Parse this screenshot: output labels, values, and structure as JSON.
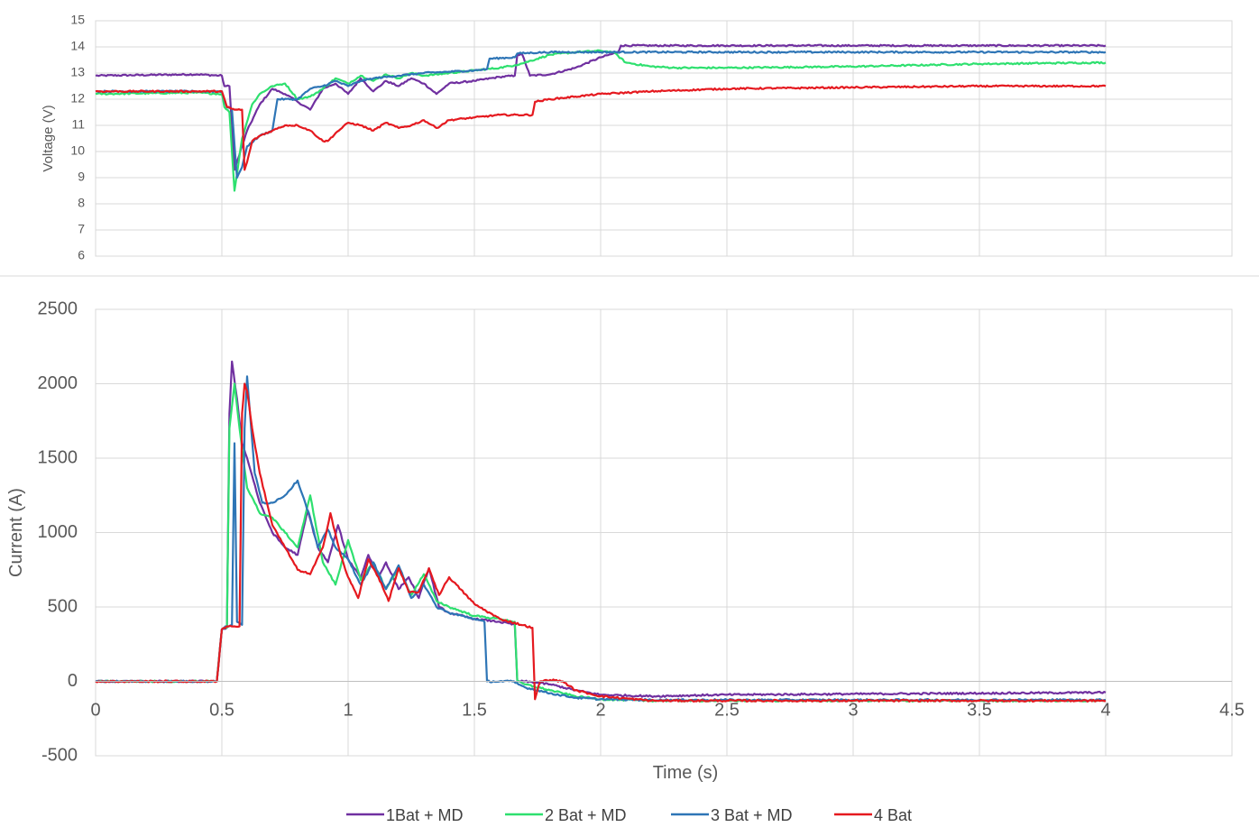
{
  "chart_data": [
    {
      "type": "line",
      "title": "",
      "xlabel": "",
      "ylabel": "Voltage (V)",
      "xlim": [
        0,
        4.5
      ],
      "ylim": [
        6,
        15
      ],
      "y_ticks": [
        "6",
        "7",
        "8",
        "9",
        "10",
        "11",
        "12",
        "13",
        "14",
        "15"
      ],
      "grid": true,
      "series": [
        {
          "name": "1Bat + MD",
          "color": "#7030a0",
          "x": [
            0,
            0.4,
            0.5,
            0.51,
            0.53,
            0.55,
            0.6,
            0.65,
            0.7,
            0.75,
            0.8,
            0.85,
            0.9,
            0.95,
            1.0,
            1.05,
            1.1,
            1.15,
            1.2,
            1.25,
            1.3,
            1.35,
            1.4,
            1.5,
            1.6,
            1.66,
            1.67,
            1.69,
            1.72,
            1.8,
            1.9,
            2.0,
            2.07,
            2.08,
            2.5,
            3.0,
            3.5,
            4.0
          ],
          "y": [
            12.9,
            12.95,
            12.9,
            12.5,
            12.5,
            9.3,
            10.8,
            11.8,
            12.4,
            12.2,
            11.9,
            11.6,
            12.4,
            12.6,
            12.2,
            12.8,
            12.3,
            12.7,
            12.5,
            12.8,
            12.6,
            12.2,
            12.6,
            12.7,
            12.85,
            12.9,
            13.7,
            13.7,
            12.9,
            12.95,
            13.2,
            13.6,
            13.8,
            14.05,
            14.05,
            14.05,
            14.05,
            14.05
          ]
        },
        {
          "name": "2 Bat + MD",
          "color": "#2ee06f",
          "x": [
            0,
            0.4,
            0.5,
            0.51,
            0.53,
            0.55,
            0.58,
            0.62,
            0.65,
            0.7,
            0.75,
            0.8,
            0.85,
            0.9,
            0.95,
            1.0,
            1.05,
            1.1,
            1.15,
            1.2,
            1.25,
            1.3,
            1.4,
            1.5,
            1.6,
            1.66,
            1.7,
            1.8,
            1.9,
            2.0,
            2.05,
            2.1,
            2.2,
            2.3,
            2.5,
            3.0,
            3.5,
            4.0
          ],
          "y": [
            12.2,
            12.25,
            12.2,
            11.7,
            11.5,
            8.5,
            10.5,
            11.8,
            12.2,
            12.5,
            12.6,
            12.0,
            12.1,
            12.4,
            12.8,
            12.6,
            12.9,
            12.7,
            12.95,
            12.8,
            13.0,
            12.9,
            13.0,
            13.1,
            13.2,
            13.3,
            13.4,
            13.7,
            13.8,
            13.85,
            13.8,
            13.4,
            13.25,
            13.2,
            13.2,
            13.25,
            13.35,
            13.4
          ]
        },
        {
          "name": "3 Bat + MD",
          "color": "#2e75b6",
          "x": [
            0,
            0.4,
            0.5,
            0.52,
            0.54,
            0.56,
            0.58,
            0.6,
            0.65,
            0.7,
            0.72,
            0.8,
            0.85,
            0.9,
            0.95,
            1.0,
            1.05,
            1.1,
            1.2,
            1.3,
            1.4,
            1.5,
            1.55,
            1.56,
            1.66,
            1.67,
            1.8,
            2.0,
            2.5,
            3.0,
            3.5,
            4.0
          ],
          "y": [
            12.3,
            12.3,
            12.3,
            11.7,
            11.6,
            9.0,
            9.4,
            10.2,
            10.6,
            10.8,
            12.0,
            12.0,
            12.4,
            12.5,
            12.7,
            12.5,
            12.7,
            12.8,
            12.9,
            13.0,
            13.05,
            13.1,
            13.15,
            13.55,
            13.6,
            13.75,
            13.8,
            13.8,
            13.8,
            13.8,
            13.8,
            13.8
          ]
        },
        {
          "name": "4 Bat",
          "color": "#e5191f",
          "x": [
            0,
            0.4,
            0.5,
            0.52,
            0.55,
            0.58,
            0.59,
            0.6,
            0.62,
            0.65,
            0.7,
            0.75,
            0.8,
            0.85,
            0.9,
            0.92,
            0.95,
            1.0,
            1.05,
            1.1,
            1.15,
            1.2,
            1.25,
            1.3,
            1.35,
            1.4,
            1.5,
            1.6,
            1.73,
            1.74,
            1.8,
            1.9,
            2.0,
            2.2,
            2.5,
            3.0,
            3.5,
            4.0
          ],
          "y": [
            12.3,
            12.3,
            12.3,
            11.7,
            11.6,
            11.6,
            9.3,
            9.6,
            10.4,
            10.6,
            10.8,
            11.0,
            11.0,
            10.8,
            10.4,
            10.4,
            10.7,
            11.1,
            11.0,
            10.8,
            11.1,
            10.9,
            11.0,
            11.2,
            10.9,
            11.2,
            11.3,
            11.4,
            11.4,
            11.9,
            12.0,
            12.1,
            12.2,
            12.3,
            12.4,
            12.45,
            12.5,
            12.5
          ]
        }
      ]
    },
    {
      "type": "line",
      "title": "",
      "xlabel": "Time (s)",
      "ylabel": "Current (A)",
      "xlim": [
        0,
        4.5
      ],
      "ylim": [
        -500,
        2500
      ],
      "x_ticks": [
        "0",
        "0.5",
        "1",
        "1.5",
        "2",
        "2.5",
        "3",
        "3.5",
        "4",
        "4.5"
      ],
      "y_ticks": [
        "-500",
        "0",
        "500",
        "1000",
        "1500",
        "2000",
        "2500"
      ],
      "grid": true,
      "legend": "bottom",
      "series": [
        {
          "name": "1Bat + MD",
          "color": "#7030a0",
          "x": [
            0,
            0.48,
            0.5,
            0.52,
            0.53,
            0.54,
            0.56,
            0.58,
            0.6,
            0.65,
            0.7,
            0.75,
            0.8,
            0.84,
            0.88,
            0.92,
            0.96,
            1.0,
            1.05,
            1.08,
            1.12,
            1.15,
            1.2,
            1.24,
            1.28,
            1.32,
            1.36,
            1.4,
            1.5,
            1.6,
            1.66,
            1.67,
            1.7,
            1.8,
            1.9,
            2.0,
            2.2,
            2.5,
            3.0,
            3.5,
            4.0
          ],
          "y": [
            0,
            0,
            350,
            360,
            1800,
            2150,
            1900,
            1600,
            1500,
            1200,
            1000,
            900,
            850,
            1150,
            900,
            800,
            1050,
            820,
            700,
            850,
            700,
            800,
            620,
            700,
            560,
            760,
            500,
            460,
            420,
            400,
            380,
            0,
            0,
            -20,
            -60,
            -90,
            -100,
            -90,
            -85,
            -80,
            -75
          ]
        },
        {
          "name": "2 Bat + MD",
          "color": "#2ee06f",
          "x": [
            0,
            0.48,
            0.5,
            0.52,
            0.53,
            0.55,
            0.57,
            0.6,
            0.63,
            0.65,
            0.7,
            0.75,
            0.8,
            0.85,
            0.9,
            0.95,
            1.0,
            1.05,
            1.1,
            1.15,
            1.2,
            1.25,
            1.3,
            1.35,
            1.4,
            1.5,
            1.6,
            1.66,
            1.67,
            1.7,
            1.8,
            1.9,
            2.0,
            2.2,
            2.5,
            3.0,
            3.5,
            4.0
          ],
          "y": [
            0,
            0,
            350,
            360,
            1700,
            2000,
            1700,
            1300,
            1200,
            1130,
            1100,
            1000,
            900,
            1250,
            800,
            650,
            950,
            680,
            800,
            620,
            760,
            580,
            720,
            540,
            500,
            440,
            420,
            400,
            0,
            -20,
            -60,
            -100,
            -120,
            -130,
            -130,
            -130,
            -130,
            -130
          ]
        },
        {
          "name": "3 Bat + MD",
          "color": "#2e75b6",
          "x": [
            0,
            0.48,
            0.5,
            0.52,
            0.54,
            0.55,
            0.56,
            0.58,
            0.59,
            0.6,
            0.63,
            0.66,
            0.7,
            0.75,
            0.8,
            0.85,
            0.88,
            0.92,
            0.95,
            1.0,
            1.05,
            1.1,
            1.15,
            1.2,
            1.25,
            1.3,
            1.35,
            1.4,
            1.5,
            1.54,
            1.55,
            1.6,
            1.65,
            1.7,
            1.8,
            1.9,
            2.0,
            2.2,
            2.5,
            3.0,
            3.5,
            4.0
          ],
          "y": [
            0,
            0,
            350,
            370,
            380,
            1600,
            400,
            380,
            1700,
            2050,
            1400,
            1200,
            1200,
            1250,
            1350,
            1100,
            900,
            1020,
            900,
            820,
            650,
            800,
            620,
            780,
            560,
            650,
            500,
            460,
            420,
            400,
            0,
            0,
            0,
            -40,
            -80,
            -110,
            -120,
            -125,
            -125,
            -125,
            -125,
            -125
          ]
        },
        {
          "name": "4 Bat",
          "color": "#e5191f",
          "x": [
            0,
            0.48,
            0.5,
            0.52,
            0.55,
            0.57,
            0.58,
            0.59,
            0.6,
            0.62,
            0.65,
            0.7,
            0.75,
            0.8,
            0.85,
            0.9,
            0.93,
            0.97,
            1.0,
            1.04,
            1.08,
            1.12,
            1.16,
            1.2,
            1.24,
            1.28,
            1.32,
            1.36,
            1.4,
            1.5,
            1.6,
            1.73,
            1.74,
            1.76,
            1.8,
            1.85,
            1.9,
            2.0,
            2.2,
            2.5,
            3.0,
            3.5,
            4.0
          ],
          "y": [
            0,
            0,
            350,
            370,
            370,
            370,
            1800,
            2000,
            1950,
            1700,
            1400,
            1050,
            900,
            750,
            720,
            900,
            1130,
            850,
            700,
            560,
            820,
            700,
            540,
            760,
            600,
            600,
            760,
            580,
            700,
            520,
            420,
            360,
            -120,
            0,
            10,
            0,
            -60,
            -100,
            -130,
            -130,
            -130,
            -130,
            -130
          ]
        }
      ]
    }
  ]
}
